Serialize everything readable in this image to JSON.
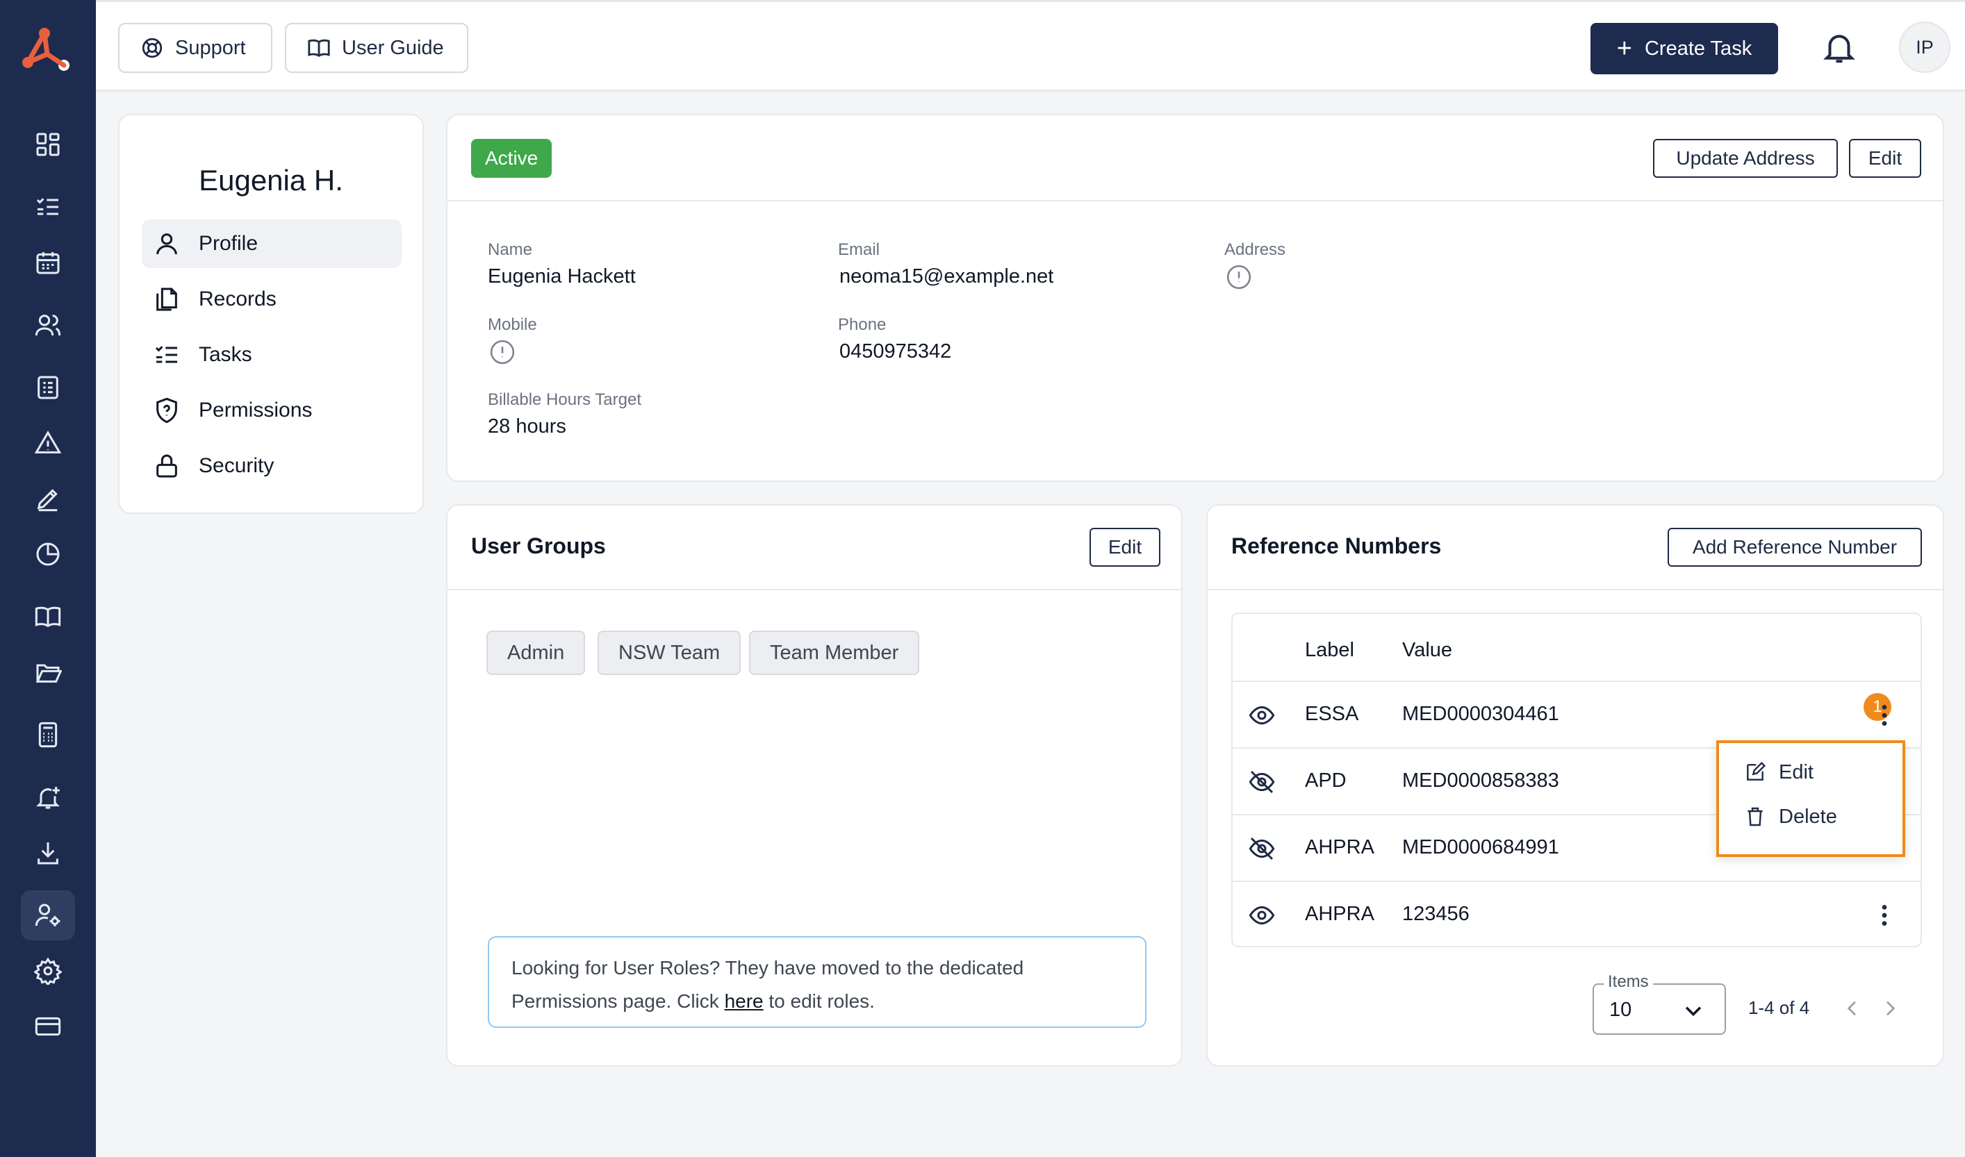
{
  "app": {
    "brand_color": "#e8603c",
    "rail_color": "#1d2b4f",
    "rail_items": [
      {
        "icon": "dashboard-icon"
      },
      {
        "icon": "checklist-icon"
      },
      {
        "icon": "calendar-icon"
      },
      {
        "icon": "users-icon"
      },
      {
        "icon": "list-card-icon"
      },
      {
        "icon": "warning-icon"
      },
      {
        "icon": "pen-icon"
      },
      {
        "icon": "pie-chart-icon"
      },
      {
        "icon": "book-icon"
      },
      {
        "icon": "folder-icon"
      },
      {
        "icon": "calculator-icon"
      },
      {
        "icon": "bell-plus-icon"
      },
      {
        "icon": "download-icon"
      },
      {
        "icon": "user-settings-icon",
        "active": true
      },
      {
        "icon": "gear-icon"
      },
      {
        "icon": "credit-card-icon"
      }
    ]
  },
  "topbar": {
    "support_label": "Support",
    "user_guide_label": "User Guide",
    "create_task_label": "Create Task",
    "avatar_initials": "IP"
  },
  "user_nav": {
    "name": "Eugenia H.",
    "items": [
      {
        "label": "Profile",
        "icon": "person-icon",
        "active": true
      },
      {
        "label": "Records",
        "icon": "documents-icon"
      },
      {
        "label": "Tasks",
        "icon": "checklist-icon"
      },
      {
        "label": "Permissions",
        "icon": "shield-icon"
      },
      {
        "label": "Security",
        "icon": "lock-icon"
      }
    ]
  },
  "profile": {
    "status": "Active",
    "status_color": "#3fa84a",
    "update_address_label": "Update Address",
    "edit_label": "Edit",
    "name_label": "Name",
    "name_value": "Eugenia Hackett",
    "email_label": "Email",
    "email_value": "neoma15@example.net",
    "address_label": "Address",
    "mobile_label": "Mobile",
    "phone_label": "Phone",
    "phone_value": "0450975342",
    "billable_label": "Billable Hours Target",
    "billable_value": "28 hours"
  },
  "user_groups": {
    "title": "User Groups",
    "edit_label": "Edit",
    "groups": [
      "Admin",
      "NSW Team",
      "Team Member"
    ],
    "notice_text_before": "Looking for User Roles? They have moved to the dedicated Permissions page. Click",
    "notice_link": "here",
    "notice_text_after": "to edit roles."
  },
  "reference_numbers": {
    "title": "Reference Numbers",
    "add_label": "Add Reference Number",
    "columns": [
      "Label",
      "Value"
    ],
    "rows": [
      {
        "visible": true,
        "label": "ESSA",
        "value": "MED0000304461"
      },
      {
        "visible": false,
        "label": "APD",
        "value": "MED0000858383"
      },
      {
        "visible": false,
        "label": "AHPRA",
        "value": "MED0000684991"
      },
      {
        "visible": true,
        "label": "AHPRA",
        "value": "123456"
      }
    ],
    "callout_number": "1",
    "menu": {
      "edit_label": "Edit",
      "delete_label": "Delete"
    },
    "pagination": {
      "items_legend": "Items",
      "items_value": "10",
      "range": "1-4 of 4"
    }
  }
}
